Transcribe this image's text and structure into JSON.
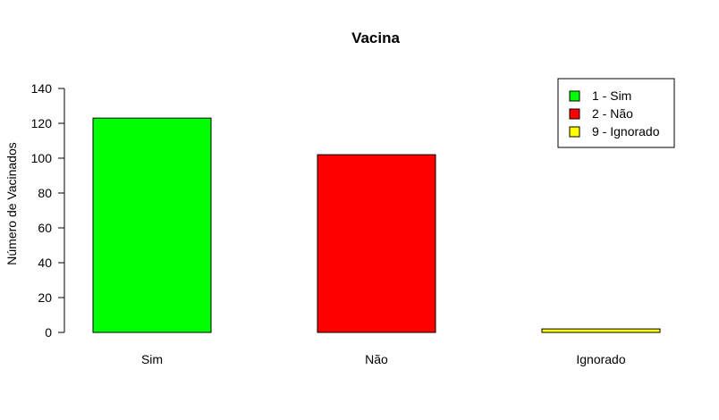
{
  "chart_data": {
    "type": "bar",
    "title": "Vacina",
    "xlabel": "",
    "ylabel": "Número de Vacinados",
    "categories": [
      "Sim",
      "Não",
      "Ignorado"
    ],
    "values": [
      123,
      102,
      2
    ],
    "colors": [
      "#00ff00",
      "#ff0000",
      "#ffff00"
    ],
    "ylim": [
      0,
      140
    ],
    "yticks": [
      0,
      20,
      40,
      60,
      80,
      100,
      120,
      140
    ],
    "grid": false,
    "legend": {
      "placement": "top-right",
      "entries": [
        "1 - Sim",
        "2 - Não",
        "9 - Ignorado"
      ],
      "colors": [
        "#00ff00",
        "#ff0000",
        "#ffff00"
      ]
    }
  }
}
